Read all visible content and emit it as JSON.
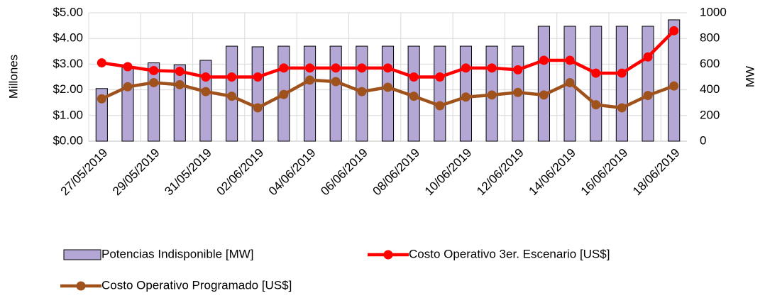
{
  "chart_data": {
    "type": "bar",
    "y_label": "Millones",
    "y2_label": "MW",
    "categories": [
      "27/05/2019",
      null,
      "29/05/2019",
      null,
      "31/05/2019",
      null,
      "02/06/2019",
      null,
      "04/06/2019",
      null,
      "06/06/2019",
      null,
      "08/06/2019",
      null,
      "10/06/2019",
      null,
      "12/06/2019",
      null,
      "14/06/2019",
      null,
      "16/06/2019",
      null,
      "18/06/2019"
    ],
    "ylim": [
      0,
      5
    ],
    "yticks": [
      {
        "value": 0,
        "label": "$0.00"
      },
      {
        "value": 1,
        "label": "$1.00"
      },
      {
        "value": 2,
        "label": "$2.00"
      },
      {
        "value": 3,
        "label": "$3.00"
      },
      {
        "value": 4,
        "label": "$4.00"
      },
      {
        "value": 5,
        "label": "$5.00"
      }
    ],
    "y2lim": [
      0,
      1000
    ],
    "y2ticks": [
      0,
      200,
      400,
      600,
      800,
      1000
    ],
    "grid": true,
    "legend": "bottom",
    "series": [
      {
        "name": "Potencias Indisponible [MW]",
        "type": "bar",
        "axis": "y2",
        "color": "#b4a7d6",
        "values": [
          410,
          575,
          610,
          595,
          630,
          740,
          735,
          740,
          740,
          740,
          740,
          740,
          740,
          740,
          740,
          740,
          740,
          895,
          895,
          895,
          895,
          895,
          945
        ]
      },
      {
        "name": "Costo Operativo 3er. Escenario [US$]",
        "type": "line",
        "color": "#ff0000",
        "values": [
          3.05,
          2.9,
          2.75,
          2.72,
          2.5,
          2.5,
          2.5,
          2.85,
          2.85,
          2.85,
          2.85,
          2.85,
          2.5,
          2.5,
          2.85,
          2.85,
          2.78,
          3.15,
          3.15,
          2.65,
          2.65,
          3.28,
          4.3
        ]
      },
      {
        "name": "Costo Operativo Programado [US$]",
        "type": "line",
        "color": "#a0521d",
        "values": [
          1.65,
          2.12,
          2.28,
          2.2,
          1.93,
          1.75,
          1.3,
          1.82,
          2.38,
          2.32,
          1.93,
          2.1,
          1.75,
          1.38,
          1.72,
          1.8,
          1.9,
          1.8,
          2.28,
          1.42,
          1.3,
          1.78,
          2.15
        ]
      }
    ]
  }
}
